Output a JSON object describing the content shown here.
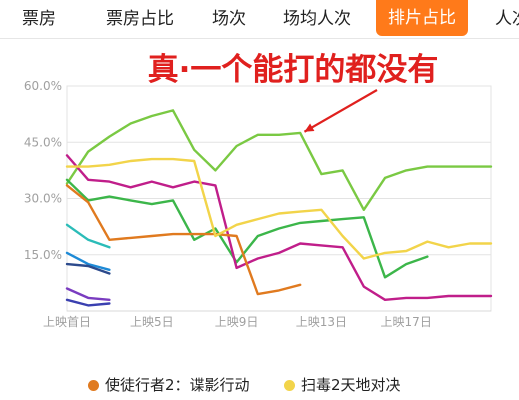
{
  "tabs": [
    {
      "label": "票房",
      "active": false
    },
    {
      "label": "票房占比",
      "active": false
    },
    {
      "label": "场次",
      "active": false
    },
    {
      "label": "场均人次",
      "active": false
    },
    {
      "label": "排片占比",
      "active": true
    },
    {
      "label": "人次",
      "active": false
    }
  ],
  "colors": {
    "accent": "#ff7a1a",
    "annotation": "#e0201e"
  },
  "chart_data": {
    "type": "line",
    "annotation": "真·一个能打的都没有",
    "ylim": [
      0,
      60
    ],
    "yticks": [
      {
        "value": 15,
        "label": "15.0%"
      },
      {
        "value": 30,
        "label": "30.0%"
      },
      {
        "value": 45,
        "label": "45.0%"
      },
      {
        "value": 60,
        "label": "60.0%"
      }
    ],
    "xlim": [
      1,
      21
    ],
    "xticks": [
      {
        "value": 1,
        "label": "上映首日"
      },
      {
        "value": 5,
        "label": "上映5日"
      },
      {
        "value": 9,
        "label": "上映9日"
      },
      {
        "value": 13,
        "label": "上映13日"
      },
      {
        "value": 17,
        "label": "上映17日"
      }
    ],
    "legend": {
      "placement": "bottom"
    },
    "grid": true,
    "series": [
      {
        "name": "",
        "color": "#7ac943",
        "x": [
          1,
          2,
          3,
          4,
          5,
          6,
          7,
          8,
          9,
          10,
          11,
          12,
          13,
          14,
          15,
          16,
          17,
          18,
          19,
          20,
          21
        ],
        "y": [
          34,
          42.5,
          46.5,
          50,
          52,
          53.5,
          43,
          37.5,
          44,
          47,
          47,
          47.5,
          36.5,
          37.5,
          27,
          35.5,
          37.5,
          38.5,
          38.5,
          38.5,
          38.5
        ]
      },
      {
        "name": "",
        "color": "#3cb64a",
        "x": [
          1,
          2,
          3,
          4,
          5,
          6,
          7,
          8,
          9,
          10,
          11,
          12,
          13,
          14,
          15,
          16,
          17,
          18,
          19,
          20,
          21
        ],
        "y": [
          35,
          29.5,
          30.5,
          29.5,
          28.5,
          29.5,
          19,
          22,
          13,
          20,
          22,
          23.5,
          24,
          24.5,
          25,
          9,
          12.5,
          14.5,
          null,
          null,
          null
        ]
      },
      {
        "name": "",
        "color": "#c01e8a",
        "x": [
          1,
          2,
          3,
          4,
          5,
          6,
          7,
          8,
          9,
          10,
          11,
          12,
          13,
          14,
          15,
          16,
          17,
          18,
          19,
          20,
          21
        ],
        "y": [
          41.5,
          35,
          34.5,
          33,
          34.5,
          33,
          34.5,
          33.5,
          11.5,
          14,
          15.5,
          18,
          17.5,
          17,
          6.5,
          3,
          3.5,
          3.5,
          4,
          4,
          4
        ]
      },
      {
        "name": "使徒行者2：谍影行动",
        "color": "#e07a1f",
        "x": [
          1,
          2,
          3,
          4,
          5,
          6,
          7,
          8,
          9,
          10,
          11,
          12,
          13
        ],
        "y": [
          33.5,
          29,
          19,
          19.5,
          20,
          20.5,
          20.5,
          20.5,
          20,
          4.5,
          5.5,
          7,
          null
        ]
      },
      {
        "name": "扫毒2天地对决",
        "color": "#f2d44a",
        "x": [
          1,
          2,
          3,
          4,
          5,
          6,
          7,
          8,
          9,
          10,
          11,
          12,
          13,
          14,
          15,
          16,
          17,
          18,
          19,
          20,
          21
        ],
        "y": [
          38.5,
          38.5,
          39,
          40,
          40.5,
          40.5,
          40,
          20,
          23,
          24.5,
          26,
          26.5,
          27,
          20,
          14,
          15.5,
          16,
          18.5,
          17,
          18,
          18
        ]
      },
      {
        "name": "",
        "color": "#2bbcb8",
        "x": [
          1,
          2,
          3
        ],
        "y": [
          23,
          19,
          17
        ]
      },
      {
        "name": "",
        "color": "#1e8ad6",
        "x": [
          1,
          2,
          3
        ],
        "y": [
          15.5,
          12.5,
          11
        ]
      },
      {
        "name": "",
        "color": "#2c4a8c",
        "x": [
          1,
          2,
          3
        ],
        "y": [
          12.5,
          12,
          10
        ]
      },
      {
        "name": "",
        "color": "#7a3cc0",
        "x": [
          1,
          2,
          3
        ],
        "y": [
          6,
          3.5,
          3
        ]
      },
      {
        "name": "",
        "color": "#3a40b0",
        "x": [
          1,
          2,
          3
        ],
        "y": [
          3,
          1.5,
          2
        ]
      }
    ]
  }
}
